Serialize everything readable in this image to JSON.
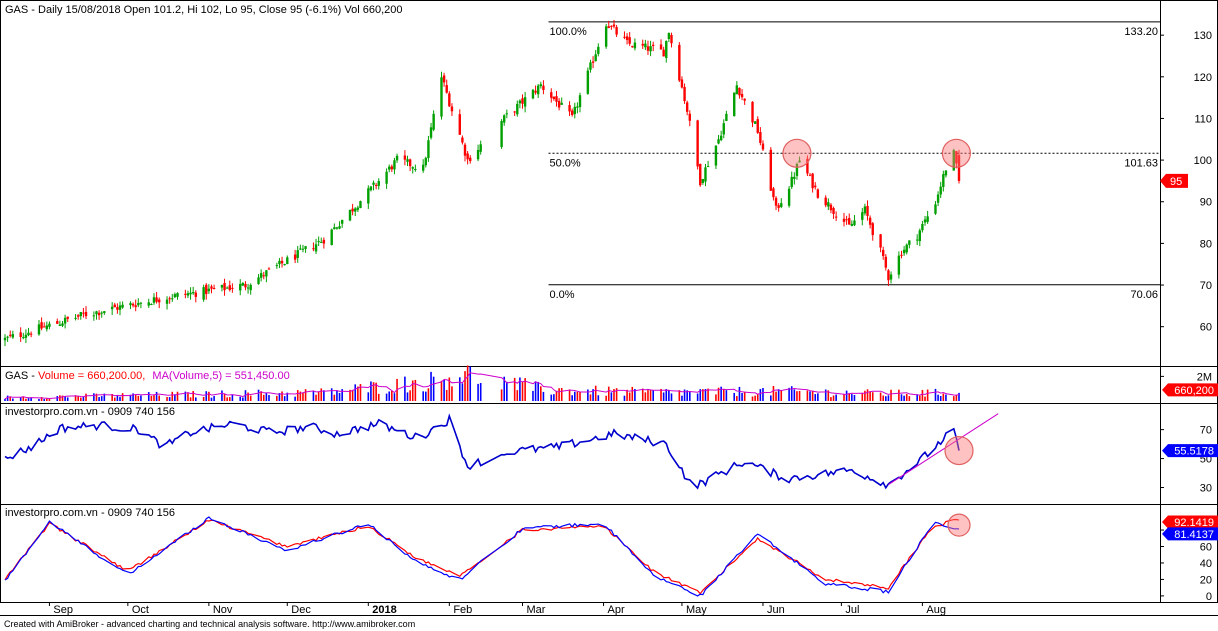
{
  "chart_data": [
    {
      "type": "candlestick",
      "title": "GAS - Daily 15/08/2018 Open 101.2, Hi 102, Lo 95, Close 95 (-6.1%) Vol 660,200",
      "ylim": [
        52,
        137
      ],
      "yticks": [
        60,
        70,
        80,
        90,
        100,
        110,
        120,
        130
      ],
      "last_price_label": "95",
      "key_points": [
        {
          "date": "2017-08-15",
          "close": 57
        },
        {
          "date": "2017-09-15",
          "close": 63
        },
        {
          "date": "2017-10-15",
          "close": 67
        },
        {
          "date": "2017-11-15",
          "close": 70
        },
        {
          "date": "2017-12-15",
          "close": 81
        },
        {
          "date": "2018-01-05",
          "close": 95
        },
        {
          "date": "2018-01-12",
          "close": 100
        },
        {
          "date": "2018-01-22",
          "close": 98
        },
        {
          "date": "2018-01-29",
          "close": 120
        },
        {
          "date": "2018-02-08",
          "close": 100
        },
        {
          "date": "2018-02-22",
          "close": 110
        },
        {
          "date": "2018-03-08",
          "close": 118
        },
        {
          "date": "2018-03-20",
          "close": 110
        },
        {
          "date": "2018-04-02",
          "close": 133
        },
        {
          "date": "2018-04-10",
          "close": 128
        },
        {
          "date": "2018-04-24",
          "close": 126
        },
        {
          "date": "2018-04-26",
          "close": 131
        },
        {
          "date": "2018-05-03",
          "close": 112
        },
        {
          "date": "2018-05-08",
          "close": 95
        },
        {
          "date": "2018-05-15",
          "close": 105
        },
        {
          "date": "2018-05-22",
          "close": 118
        },
        {
          "date": "2018-05-30",
          "close": 107
        },
        {
          "date": "2018-06-06",
          "close": 88
        },
        {
          "date": "2018-06-12",
          "close": 95
        },
        {
          "date": "2018-06-15",
          "close": 100
        },
        {
          "date": "2018-06-22",
          "close": 92
        },
        {
          "date": "2018-06-28",
          "close": 88
        },
        {
          "date": "2018-07-04",
          "close": 84
        },
        {
          "date": "2018-07-10",
          "close": 88
        },
        {
          "date": "2018-07-16",
          "close": 78
        },
        {
          "date": "2018-07-19",
          "close": 72
        },
        {
          "date": "2018-07-24",
          "close": 78
        },
        {
          "date": "2018-07-30",
          "close": 82
        },
        {
          "date": "2018-08-06",
          "close": 90
        },
        {
          "date": "2018-08-10",
          "close": 98
        },
        {
          "date": "2018-08-13",
          "close": 101.5
        },
        {
          "date": "2018-08-15",
          "close": 95
        }
      ],
      "fibonacci": [
        {
          "label": "100.0%",
          "value_label": "133.20",
          "value": 133.2
        },
        {
          "label": "50.0%",
          "value_label": "101.63",
          "value": 101.63
        },
        {
          "label": "0.0%",
          "value_label": "70.06",
          "value": 70.06
        }
      ]
    },
    {
      "type": "bar",
      "title_prefix": "GAS - ",
      "title_volume": "Volume = 660,200.00,",
      "title_ma": "MA(Volume,5) = 551,450.00",
      "ytick_label": "2M",
      "ymax": 2600000,
      "last_label": "660,200",
      "key_points": [
        {
          "date": "2017-08-15",
          "volume": 300000
        },
        {
          "date": "2017-12-15",
          "volume": 700000
        },
        {
          "date": "2018-01-25",
          "volume": 1600000
        },
        {
          "date": "2018-02-05",
          "volume": 2200000
        },
        {
          "date": "2018-03-10",
          "volume": 900000
        },
        {
          "date": "2018-04-20",
          "volume": 700000
        },
        {
          "date": "2018-06-08",
          "volume": 800000
        },
        {
          "date": "2018-07-15",
          "volume": 600000
        },
        {
          "date": "2018-08-15",
          "volume": 660200
        }
      ]
    },
    {
      "type": "line",
      "title": "investorpro.com.vn - 0909 740 156",
      "ylim": [
        20,
        87
      ],
      "yticks": [
        30,
        50,
        70
      ],
      "last_label": "55.5178",
      "key_points": [
        {
          "date": "2017-08-15",
          "value": 50
        },
        {
          "date": "2017-08-25",
          "value": 58
        },
        {
          "date": "2017-09-05",
          "value": 71
        },
        {
          "date": "2017-09-20",
          "value": 73
        },
        {
          "date": "2017-10-05",
          "value": 70
        },
        {
          "date": "2017-10-15",
          "value": 58
        },
        {
          "date": "2017-10-25",
          "value": 68
        },
        {
          "date": "2017-11-10",
          "value": 74
        },
        {
          "date": "2017-11-25",
          "value": 68
        },
        {
          "date": "2017-12-10",
          "value": 72
        },
        {
          "date": "2017-12-20",
          "value": 67
        },
        {
          "date": "2018-01-05",
          "value": 74
        },
        {
          "date": "2018-01-20",
          "value": 64
        },
        {
          "date": "2018-02-01",
          "value": 77
        },
        {
          "date": "2018-02-08",
          "value": 45
        },
        {
          "date": "2018-02-25",
          "value": 55
        },
        {
          "date": "2018-03-15",
          "value": 58
        },
        {
          "date": "2018-04-05",
          "value": 67
        },
        {
          "date": "2018-04-25",
          "value": 60
        },
        {
          "date": "2018-05-05",
          "value": 30
        },
        {
          "date": "2018-05-25",
          "value": 48
        },
        {
          "date": "2018-06-10",
          "value": 36
        },
        {
          "date": "2018-07-05",
          "value": 42
        },
        {
          "date": "2018-07-19",
          "value": 32
        },
        {
          "date": "2018-08-01",
          "value": 50
        },
        {
          "date": "2018-08-13",
          "value": 70
        },
        {
          "date": "2018-08-15",
          "value": 55.52
        }
      ],
      "trendline": [
        {
          "date": "2018-07-19",
          "value": 32
        },
        {
          "date": "2018-08-30",
          "value": 81
        }
      ]
    },
    {
      "type": "line",
      "title": "investorpro.com.vn - 0909 740 156",
      "ylim": [
        -5,
        108
      ],
      "yticks": [
        0,
        20,
        40,
        60,
        80
      ],
      "last_label_1": "92.1419",
      "last_label_2": "81.4137",
      "series": [
        {
          "color": "#ff0000",
          "key_points": [
            {
              "date": "2017-08-15",
              "value": 20
            },
            {
              "date": "2017-09-01",
              "value": 88
            },
            {
              "date": "2017-10-01",
              "value": 30
            },
            {
              "date": "2017-11-01",
              "value": 92
            },
            {
              "date": "2017-12-01",
              "value": 60
            },
            {
              "date": "2018-01-01",
              "value": 85
            },
            {
              "date": "2018-01-20",
              "value": 45
            },
            {
              "date": "2018-02-05",
              "value": 25
            },
            {
              "date": "2018-03-01",
              "value": 80
            },
            {
              "date": "2018-04-01",
              "value": 85
            },
            {
              "date": "2018-04-20",
              "value": 30
            },
            {
              "date": "2018-05-08",
              "value": 3
            },
            {
              "date": "2018-05-30",
              "value": 70
            },
            {
              "date": "2018-06-25",
              "value": 20
            },
            {
              "date": "2018-07-19",
              "value": 10
            },
            {
              "date": "2018-08-05",
              "value": 85
            },
            {
              "date": "2018-08-15",
              "value": 92.14
            }
          ]
        },
        {
          "color": "#0000ff",
          "key_points": [
            {
              "date": "2017-08-15",
              "value": 18
            },
            {
              "date": "2017-09-01",
              "value": 90
            },
            {
              "date": "2017-10-01",
              "value": 25
            },
            {
              "date": "2017-11-01",
              "value": 95
            },
            {
              "date": "2017-12-01",
              "value": 55
            },
            {
              "date": "2018-01-01",
              "value": 88
            },
            {
              "date": "2018-01-20",
              "value": 40
            },
            {
              "date": "2018-02-05",
              "value": 20
            },
            {
              "date": "2018-03-01",
              "value": 82
            },
            {
              "date": "2018-04-01",
              "value": 88
            },
            {
              "date": "2018-04-20",
              "value": 25
            },
            {
              "date": "2018-05-08",
              "value": 0
            },
            {
              "date": "2018-05-30",
              "value": 75
            },
            {
              "date": "2018-06-25",
              "value": 15
            },
            {
              "date": "2018-07-19",
              "value": 5
            },
            {
              "date": "2018-08-05",
              "value": 88
            },
            {
              "date": "2018-08-15",
              "value": 81.41
            }
          ]
        }
      ]
    }
  ],
  "x_axis": {
    "labels": [
      {
        "text": "Sep",
        "date": "2017-09-01"
      },
      {
        "text": "Oct",
        "date": "2017-10-01"
      },
      {
        "text": "Nov",
        "date": "2017-11-01"
      },
      {
        "text": "Dec",
        "date": "2017-12-01"
      },
      {
        "text": "2018",
        "date": "2018-01-01",
        "bold": true
      },
      {
        "text": "Feb",
        "date": "2018-02-01"
      },
      {
        "text": "Mar",
        "date": "2018-03-01"
      },
      {
        "text": "Apr",
        "date": "2018-04-01"
      },
      {
        "text": "May",
        "date": "2018-05-01"
      },
      {
        "text": "Jun",
        "date": "2018-06-01"
      },
      {
        "text": "Jul",
        "date": "2018-07-01"
      },
      {
        "text": "Aug",
        "date": "2018-08-01"
      }
    ]
  },
  "highlights": [
    {
      "panel": 0,
      "date": "2018-06-14",
      "value": 101.63
    },
    {
      "panel": 0,
      "date": "2018-08-14",
      "value": 101.63
    },
    {
      "panel": 2,
      "date": "2018-08-15",
      "value": 55.52
    },
    {
      "panel": 3,
      "date": "2018-08-15",
      "value": 86
    }
  ],
  "colors": {
    "up": "#00a000",
    "down": "#ff0000",
    "rsi": "#0000cc",
    "trend": "#cc00cc",
    "badge_red": "#ff0000",
    "badge_blue": "#0000ff"
  },
  "footer": "Created with AmiBroker - advanced charting and technical analysis software. http://www.amibroker.com"
}
